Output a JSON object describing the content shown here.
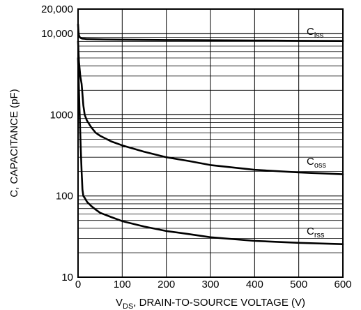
{
  "chart_data": {
    "type": "line",
    "xlabel": {
      "main": "V",
      "sub": "DS",
      "rest": ", DRAIN-TO-SOURCE VOLTAGE (V)"
    },
    "ylabel": "C, CAPACITANCE (pF)",
    "xlim": [
      0,
      600
    ],
    "ylim": [
      10,
      20000
    ],
    "yscale": "log",
    "grid": true,
    "x_ticks": [
      0,
      100,
      200,
      300,
      400,
      500,
      600
    ],
    "x_tick_labels": [
      "0",
      "100",
      "200",
      "300",
      "400",
      "500",
      "600"
    ],
    "y_ticks": [
      10,
      100,
      1000,
      10000,
      20000
    ],
    "y_tick_labels": [
      "10",
      "100",
      "1000",
      "10,000",
      "20,000"
    ],
    "series": [
      {
        "name": "C",
        "name_sub": "iss",
        "x": [
          0,
          1,
          2,
          4,
          6,
          8,
          10,
          15,
          20,
          40,
          60,
          100,
          200,
          300,
          400,
          500,
          600
        ],
        "values": [
          13000,
          10500,
          9500,
          9000,
          8800,
          8700,
          8650,
          8600,
          8550,
          8500,
          8450,
          8400,
          8300,
          8250,
          8200,
          8150,
          8100
        ]
      },
      {
        "name": "C",
        "name_sub": "oss",
        "x": [
          0,
          2,
          5,
          8,
          10,
          12,
          15,
          20,
          30,
          40,
          50,
          75,
          100,
          150,
          200,
          250,
          300,
          400,
          500,
          600
        ],
        "values": [
          8000,
          4500,
          3000,
          2400,
          1800,
          1300,
          1000,
          850,
          700,
          600,
          550,
          470,
          420,
          350,
          300,
          270,
          240,
          210,
          195,
          185
        ]
      },
      {
        "name": "C",
        "name_sub": "rss",
        "x": [
          0,
          2,
          4,
          6,
          8,
          10,
          12,
          15,
          20,
          30,
          40,
          50,
          75,
          100,
          150,
          200,
          250,
          300,
          400,
          500,
          600
        ],
        "values": [
          5000,
          2000,
          900,
          400,
          200,
          120,
          100,
          95,
          85,
          75,
          68,
          62,
          55,
          49,
          42,
          37,
          34,
          31,
          28,
          26.5,
          25.5
        ]
      }
    ]
  }
}
